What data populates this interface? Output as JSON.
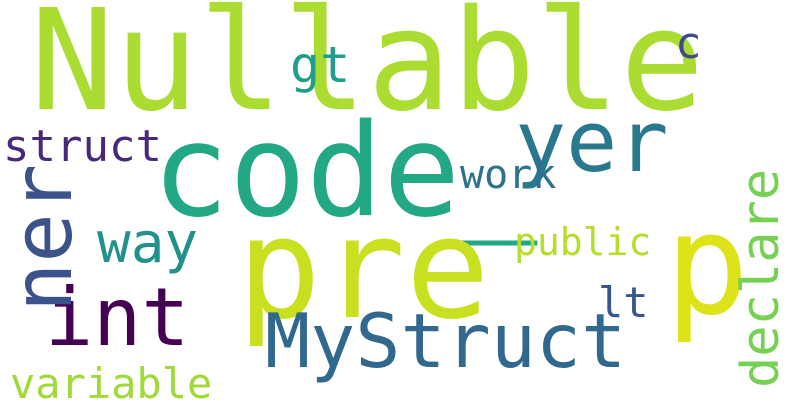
{
  "words": [
    {
      "text": "Nullable",
      "color": "#aadc32"
    },
    {
      "text": "code_",
      "color": "#22a884"
    },
    {
      "text": "pre",
      "color": "#c8e020"
    },
    {
      "text": "p",
      "color": "#dde318"
    },
    {
      "text": "yer",
      "color": "#2a788e"
    },
    {
      "text": "MyStruct",
      "color": "#31688e"
    },
    {
      "text": "int",
      "color": "#440154"
    },
    {
      "text": "ner",
      "color": "#3b528b"
    },
    {
      "text": "way",
      "color": "#21918c"
    },
    {
      "text": "struct",
      "color": "#482878"
    },
    {
      "text": "gt",
      "color": "#1f9e89"
    },
    {
      "text": "c",
      "color": "#3e4a89"
    },
    {
      "text": "work",
      "color": "#2c728e"
    },
    {
      "text": "public",
      "color": "#b5de2b"
    },
    {
      "text": "lt",
      "color": "#39568c"
    },
    {
      "text": "variable",
      "color": "#a0da39"
    },
    {
      "text": "declare",
      "color": "#75d054"
    }
  ]
}
